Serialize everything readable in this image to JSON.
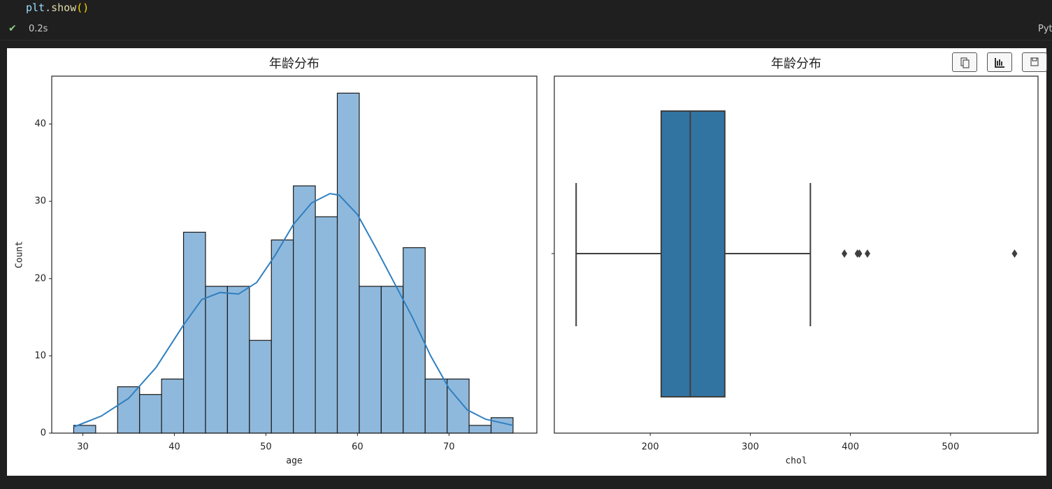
{
  "code": {
    "tokens": [
      "plt",
      ".",
      "show",
      "()"
    ]
  },
  "status": {
    "time": "0.2s"
  },
  "kernel": "Pyt",
  "chart_data": [
    {
      "type": "histogram",
      "title": "年龄分布",
      "x_label": "age",
      "y_label": "Count",
      "bins": [
        29,
        31.4,
        33.8,
        36.2,
        38.6,
        41,
        43.4,
        45.8,
        48.2,
        50.6,
        53,
        55.4,
        57.8,
        60.2,
        62.6,
        65,
        67.4,
        69.8,
        72.2,
        74.6,
        77
      ],
      "values": [
        1,
        0,
        6,
        5,
        7,
        26,
        19,
        19,
        12,
        25,
        32,
        28,
        44,
        19,
        19,
        24,
        7,
        7,
        1,
        2
      ],
      "color": "#8fb9dc",
      "kde": {
        "color": "#2f7fc0",
        "x": [
          29,
          32,
          35,
          38,
          41,
          43,
          45,
          47,
          49,
          51,
          53,
          55,
          57,
          58,
          60,
          62,
          64,
          66,
          68,
          70,
          72,
          74,
          77
        ],
        "values": [
          0.8,
          2.2,
          4.5,
          8.5,
          14,
          17.3,
          18.2,
          18,
          19.5,
          23,
          27,
          29.8,
          31,
          30.8,
          28.3,
          24,
          19.5,
          15,
          10,
          5.8,
          3,
          1.8,
          1
        ]
      },
      "xlim": [
        26.6,
        79.6
      ],
      "xticks": [
        30,
        40,
        50,
        60,
        70
      ],
      "ylim": [
        0,
        46.2
      ],
      "yticks": [
        0,
        10,
        20,
        30,
        40
      ]
    },
    {
      "type": "box",
      "title": "年龄分布",
      "x_label": "chol",
      "stats": {
        "whislo": 126,
        "q1": 211,
        "median": 240,
        "q3": 274.5,
        "whishi": 360
      },
      "outliers": [
        394,
        407,
        409,
        417,
        564
      ],
      "color": "#3274a1",
      "xlim": [
        104.2,
        587.4
      ],
      "xticks": [
        200,
        300,
        400,
        500
      ]
    }
  ]
}
